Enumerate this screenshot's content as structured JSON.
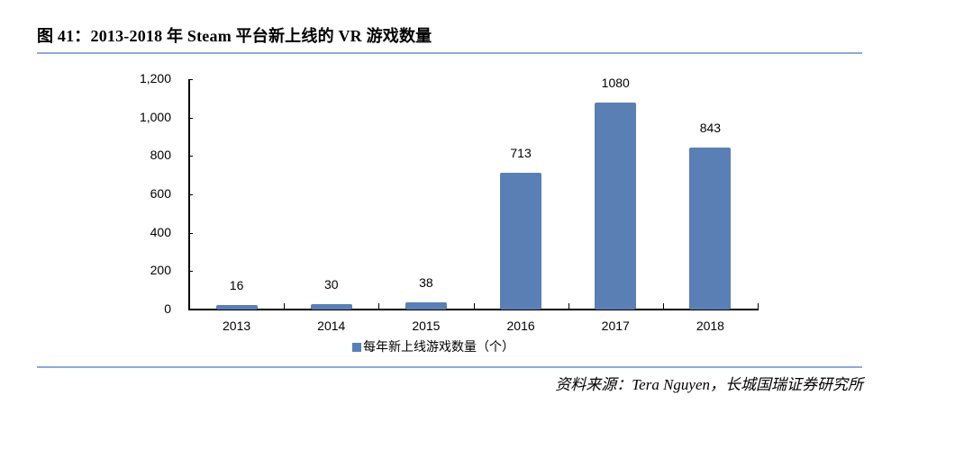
{
  "header": {
    "title": "图 41：2013-2018 年 Steam 平台新上线的 VR 游戏数量"
  },
  "footer": {
    "source": "资料来源：Tera Nguyen，长城国瑞证券研究所"
  },
  "colors": {
    "bar": "#5a7fb5",
    "rule": "#8eaadb"
  },
  "chart_data": {
    "type": "bar",
    "title": "2013-2018 年 Steam 平台新上线的 VR 游戏数量",
    "categories": [
      "2013",
      "2014",
      "2015",
      "2016",
      "2017",
      "2018"
    ],
    "series": [
      {
        "name": "每年新上线游戏数量（个）",
        "values": [
          16,
          30,
          38,
          713,
          1080,
          843
        ]
      }
    ],
    "values": [
      16,
      30,
      38,
      713,
      1080,
      843
    ],
    "xlabel": "",
    "ylabel": "",
    "ylim": [
      0,
      1200
    ],
    "yticks": [
      "0",
      "200",
      "400",
      "600",
      "800",
      "1,000",
      "1,200"
    ],
    "data_labels": [
      "16",
      "30",
      "38",
      "713",
      "1080",
      "843"
    ],
    "grid": false,
    "legend_position": "bottom"
  }
}
